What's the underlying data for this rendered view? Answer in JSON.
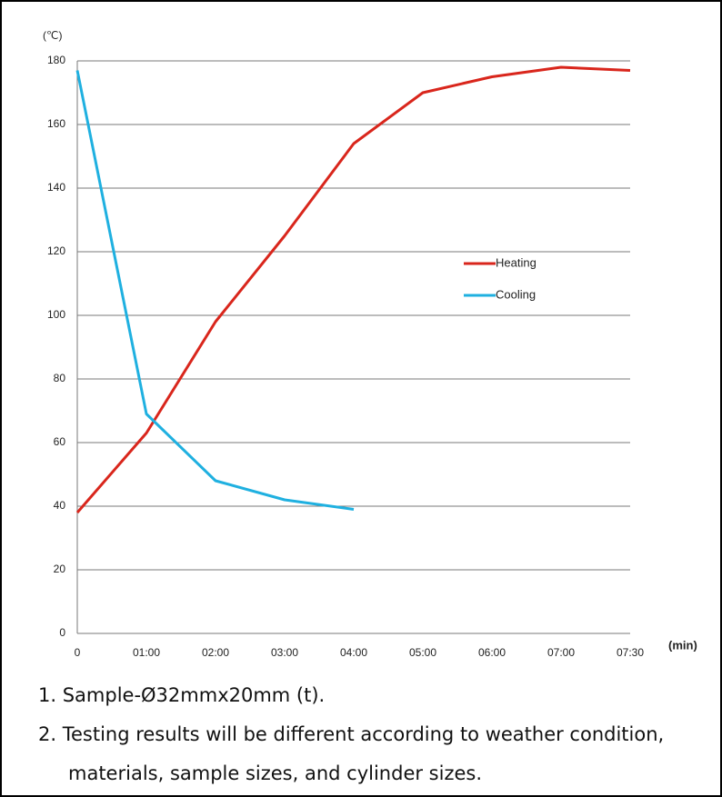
{
  "chart_data": {
    "type": "line",
    "y_label": "(℃)",
    "x_label": "(min)",
    "categories": [
      "0",
      "01:00",
      "02:00",
      "03:00",
      "04:00",
      "05:00",
      "06:00",
      "07:00",
      "07:30"
    ],
    "series": [
      {
        "name": "Heating",
        "color": "#d9261c",
        "values": [
          38,
          63,
          98,
          125,
          154,
          170,
          175,
          178,
          177
        ]
      },
      {
        "name": "Cooling",
        "color": "#1fb0e0",
        "values": [
          177,
          69,
          48,
          42,
          39,
          null,
          null,
          null,
          null
        ]
      }
    ],
    "ylim": [
      0,
      180
    ],
    "yticks": [
      0,
      20,
      40,
      60,
      80,
      100,
      120,
      140,
      160,
      180
    ],
    "grid": true
  },
  "notes": [
    "1. Sample-Ø32mmx20mm (t).",
    "2. Testing results will be different according to weather condition, materials, sample sizes, and cylinder sizes."
  ]
}
